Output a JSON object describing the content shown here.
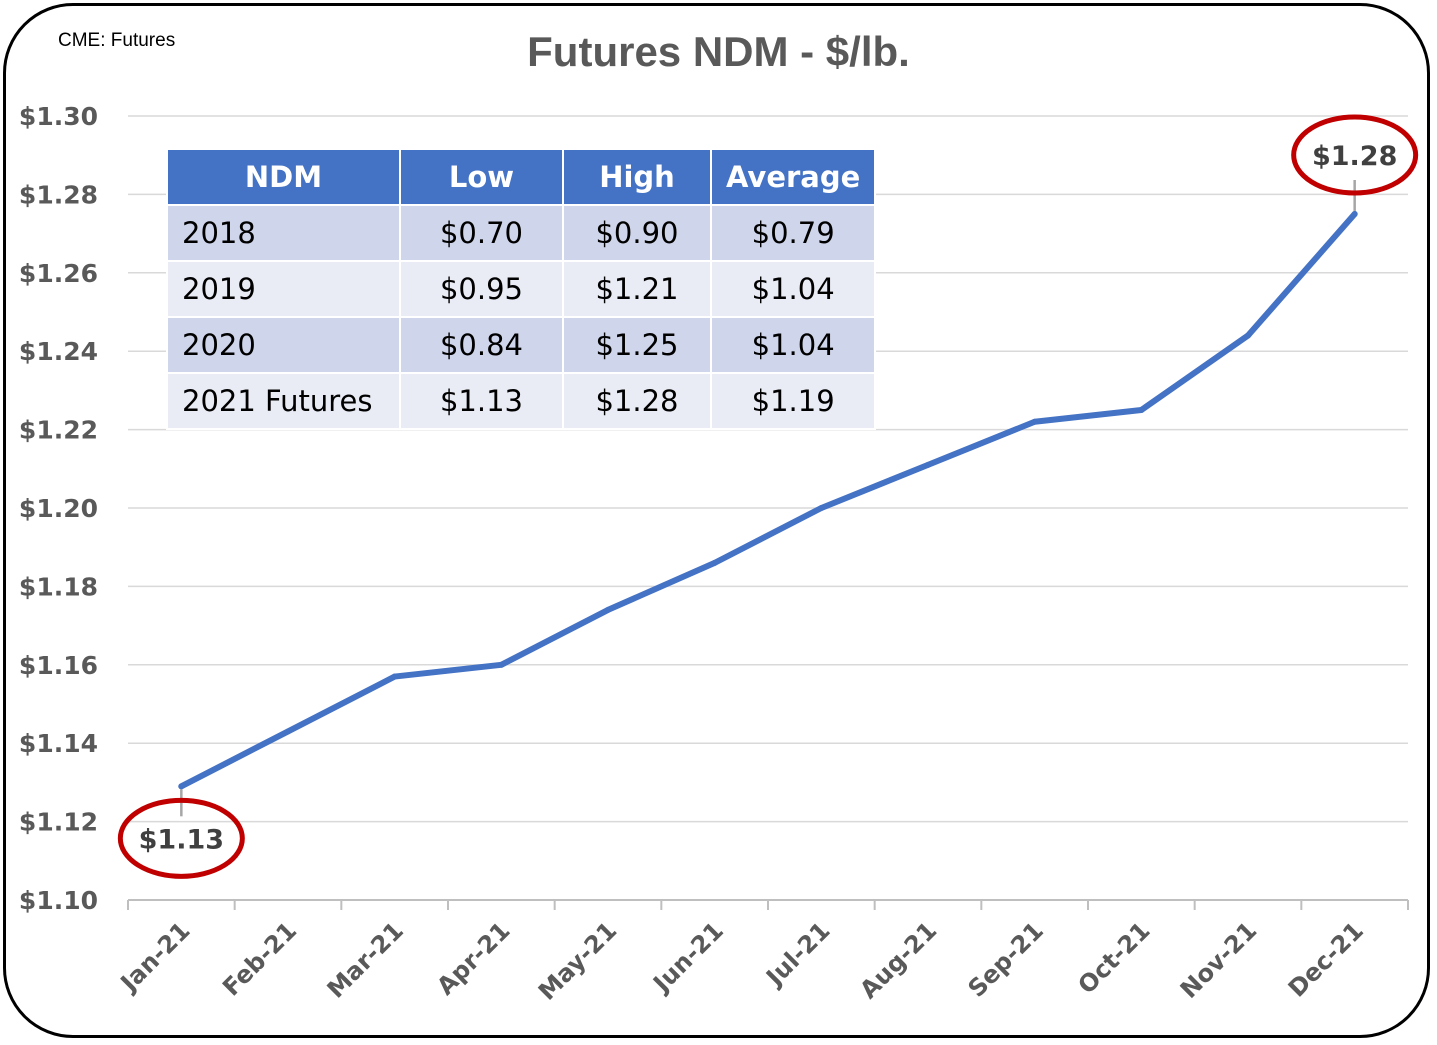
{
  "source_note": "CME: Futures",
  "chart_data": {
    "type": "line",
    "title": "Futures NDM - $/lb.",
    "categories": [
      "Jan-21",
      "Feb-21",
      "Mar-21",
      "Apr-21",
      "May-21",
      "Jun-21",
      "Jul-21",
      "Aug-21",
      "Sep-21",
      "Oct-21",
      "Nov-21",
      "Dec-21"
    ],
    "series": [
      {
        "values": [
          1.129,
          1.143,
          1.157,
          1.16,
          1.174,
          1.186,
          1.2,
          1.211,
          1.222,
          1.225,
          1.244,
          1.275
        ]
      }
    ],
    "ylim": [
      1.1,
      1.3
    ],
    "yticks": [
      "$1.10",
      "$1.12",
      "$1.14",
      "$1.16",
      "$1.18",
      "$1.20",
      "$1.22",
      "$1.24",
      "$1.26",
      "$1.28",
      "$1.30"
    ],
    "grid": true,
    "line_color": "#4472c4",
    "annotations": [
      {
        "index": 0,
        "text": "$1.13",
        "position": "below"
      },
      {
        "index": 11,
        "text": "$1.28",
        "position": "above"
      }
    ],
    "highlight_color": "#c00000"
  },
  "table": {
    "headers": [
      "NDM",
      "Low",
      "High",
      "Average"
    ],
    "rows": [
      [
        "2018",
        "$0.70",
        "$0.90",
        "$0.79"
      ],
      [
        "2019",
        "$0.95",
        "$1.21",
        "$1.04"
      ],
      [
        "2020",
        "$0.84",
        "$1.25",
        "$1.04"
      ],
      [
        "2021 Futures",
        "$1.13",
        "$1.28",
        "$1.19"
      ]
    ]
  }
}
